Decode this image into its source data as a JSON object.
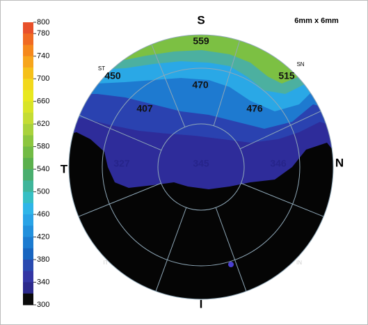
{
  "scale": {
    "ticks": [
      800,
      780,
      740,
      700,
      660,
      620,
      580,
      540,
      500,
      460,
      420,
      380,
      340,
      300
    ]
  },
  "size_label": "6mm x 6mm",
  "orientation": {
    "S": "S",
    "N": "N",
    "I": "I",
    "T": "T"
  },
  "sector_labels": {
    "ST": "ST",
    "SN": "SN",
    "IT": "IT",
    "IN": "IN"
  },
  "values": {
    "superior_outer": 559,
    "superior_inner": 470,
    "superotemporal_outer": 450,
    "superonasal_outer": 515,
    "superotemporal_inner": 407,
    "superonasal_inner": 476,
    "temporal_inner": 327,
    "central": 345,
    "nasal_inner": 346
  }
}
